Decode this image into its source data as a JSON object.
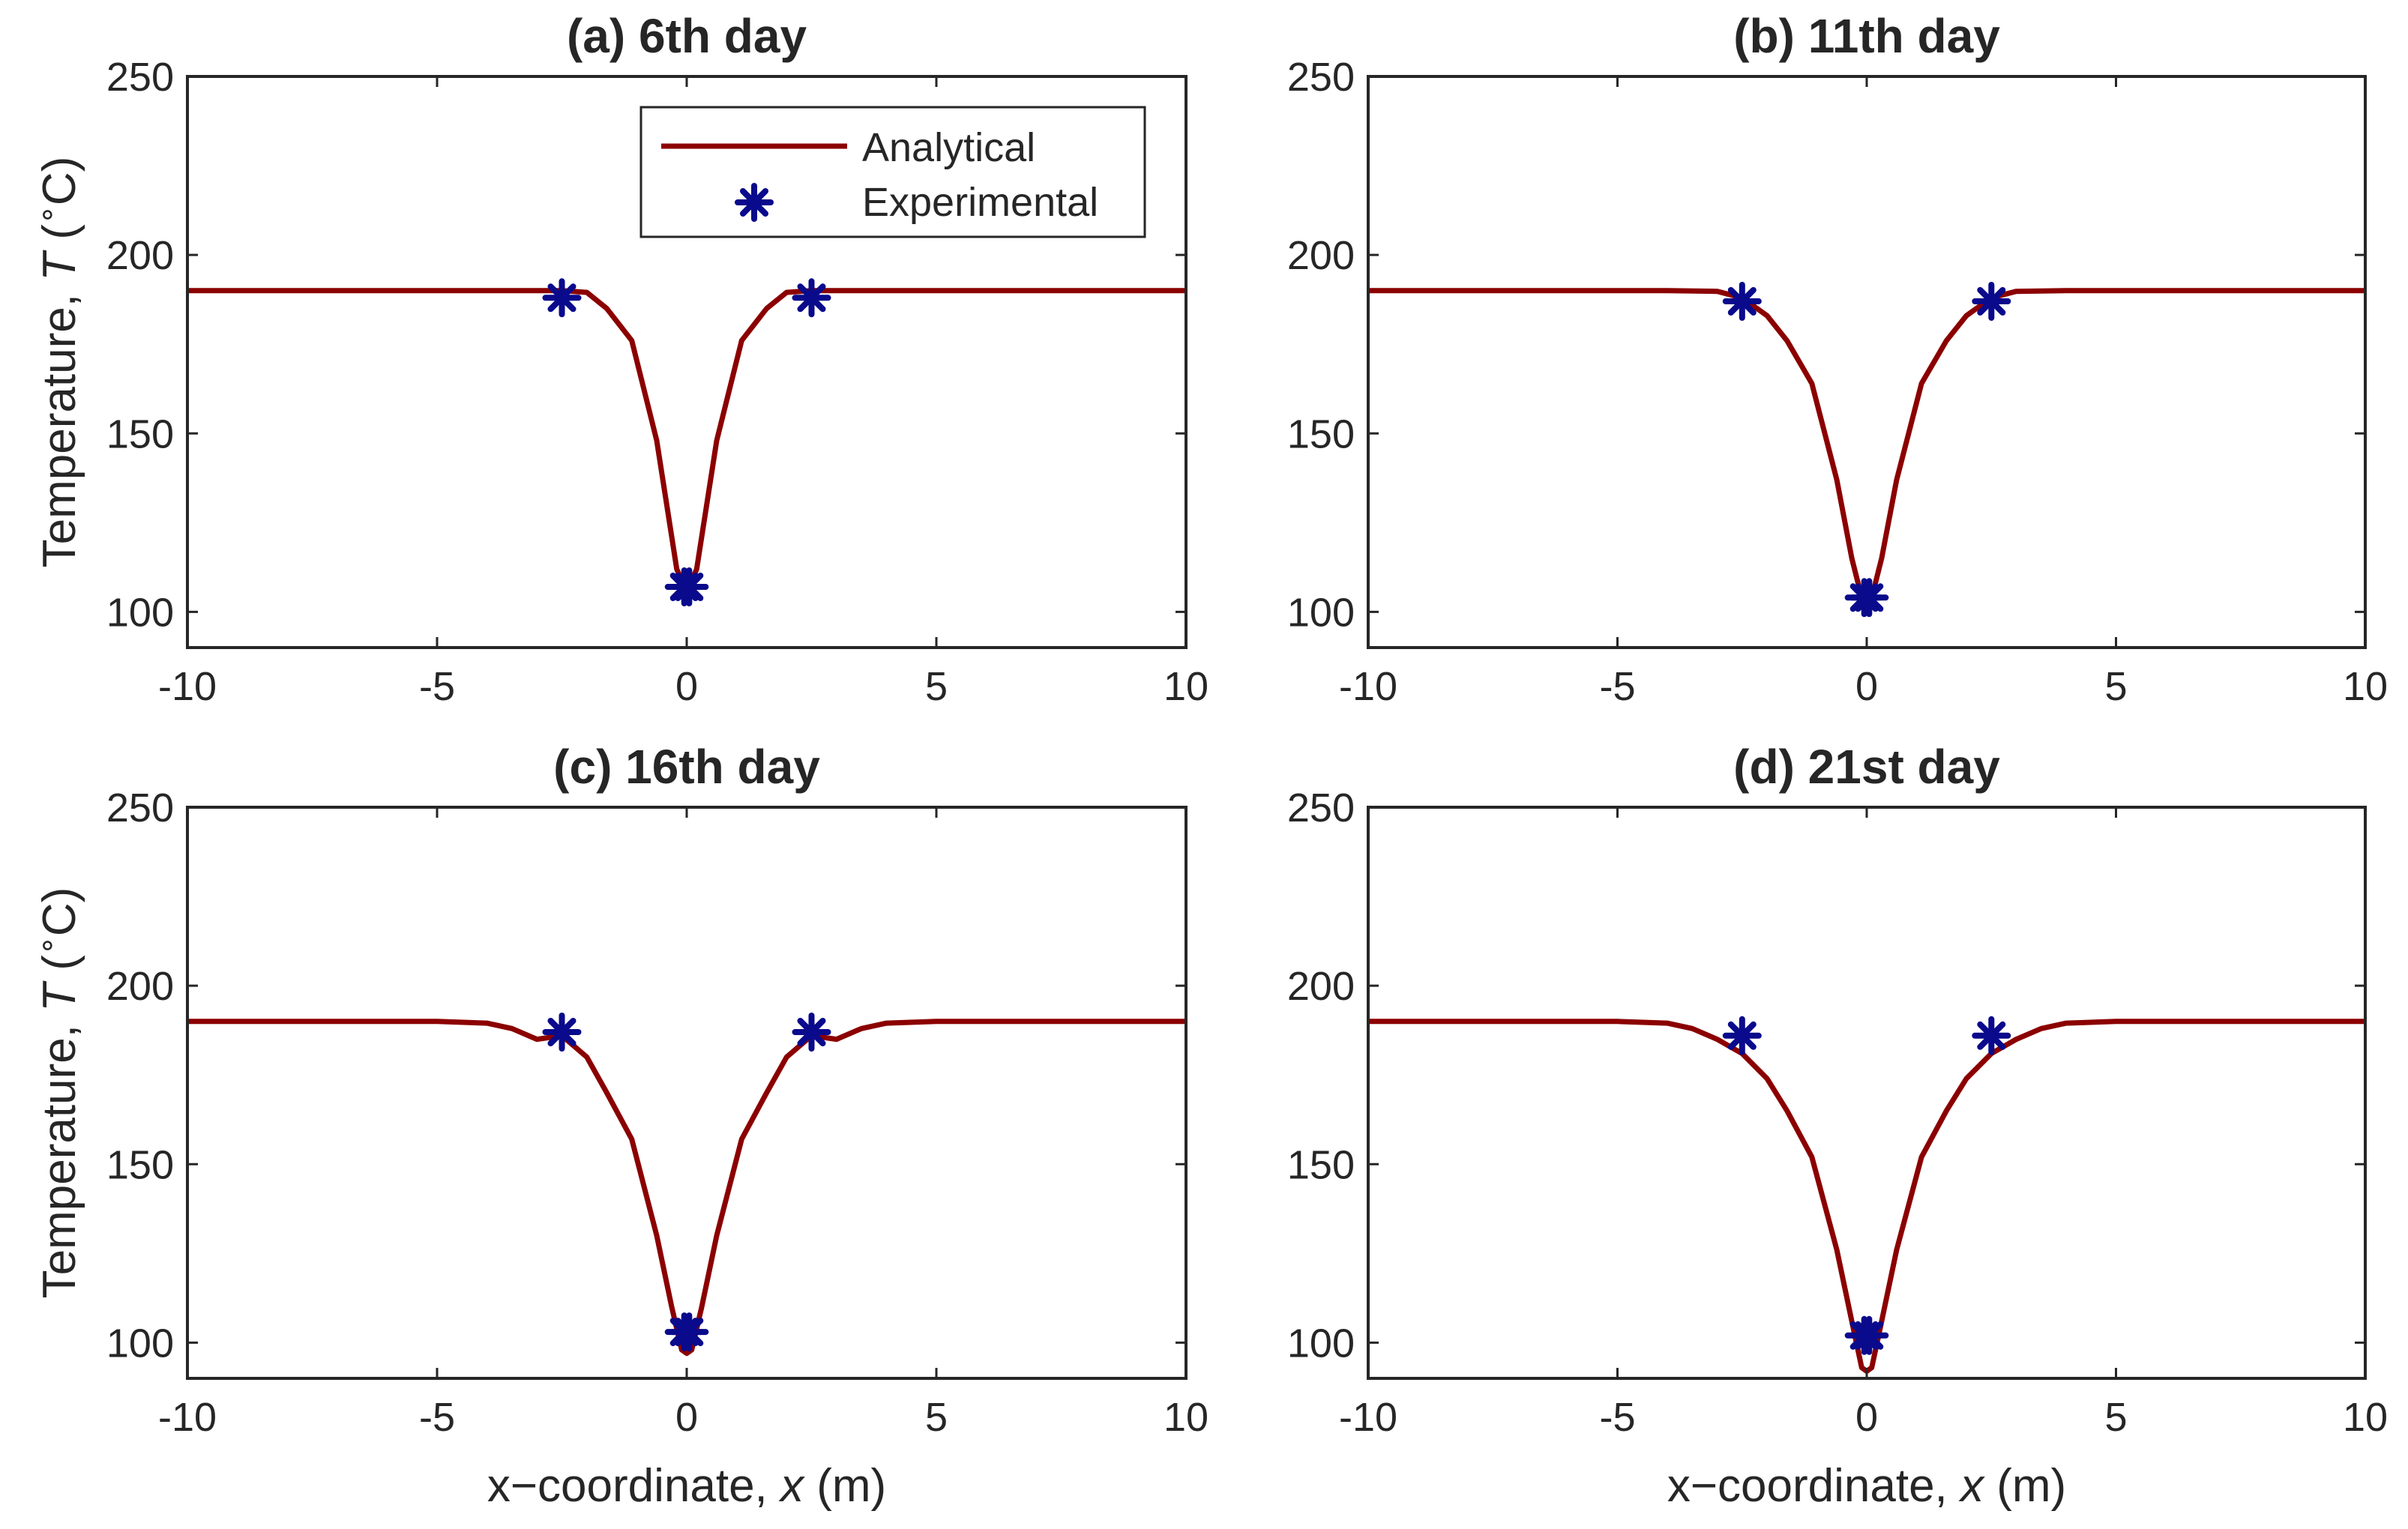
{
  "legend": {
    "analytical_label": "Analytical",
    "experimental_label": "Experimental"
  },
  "axis_text": {
    "ylabel_prefix": "Temperature, ",
    "ylabel_var": "T",
    "ylabel_unit_open": " (",
    "ylabel_degree": "∘",
    "ylabel_unit_close": "C)",
    "xlabel_prefix": "x−coordinate, ",
    "xlabel_var": "x",
    "xlabel_unit": " (m)"
  },
  "colors": {
    "analytical": "#8B0000",
    "experimental": "#0A0A8C",
    "axis": "#262626"
  },
  "chart_data": [
    {
      "type": "line",
      "title": "(a) 6th day",
      "xlim": [
        -10,
        10
      ],
      "ylim": [
        90,
        250
      ],
      "xticks": [
        -10,
        -5,
        0,
        5,
        10
      ],
      "yticks": [
        100,
        150,
        200,
        250
      ],
      "series": [
        {
          "name": "Analytical",
          "x": [
            -10,
            -5,
            -4,
            -3,
            -2.5,
            -2,
            -1.6,
            -1.1,
            -0.6,
            -0.2,
            -0.05,
            0,
            0.05,
            0.2,
            0.6,
            1.1,
            1.6,
            2,
            2.5,
            3,
            4,
            5,
            10
          ],
          "y": [
            190,
            190,
            190,
            190,
            190,
            189.5,
            185,
            176,
            148,
            112,
            107,
            106,
            107,
            112,
            148,
            176,
            185,
            189.5,
            190,
            190,
            190,
            190,
            190
          ]
        },
        {
          "name": "Experimental",
          "x": [
            -2.5,
            -0.05,
            0.05,
            2.5
          ],
          "y": [
            188,
            107,
            107,
            188
          ]
        }
      ]
    },
    {
      "type": "line",
      "title": "(b) 11th day",
      "xlim": [
        -10,
        10
      ],
      "ylim": [
        90,
        250
      ],
      "xticks": [
        -10,
        -5,
        0,
        5,
        10
      ],
      "yticks": [
        100,
        150,
        200,
        250
      ],
      "series": [
        {
          "name": "Analytical",
          "x": [
            -10,
            -5,
            -4,
            -3,
            -2.5,
            -2,
            -1.6,
            -1.1,
            -0.6,
            -0.3,
            -0.1,
            0,
            0.1,
            0.3,
            0.6,
            1.1,
            1.6,
            2,
            2.5,
            3,
            4,
            5,
            10
          ],
          "y": [
            190,
            190,
            190,
            189.8,
            188,
            183,
            176,
            164,
            137,
            115,
            104,
            103,
            104,
            115,
            137,
            164,
            176,
            183,
            188,
            189.8,
            190,
            190,
            190
          ]
        },
        {
          "name": "Experimental",
          "x": [
            -2.5,
            -0.05,
            0.05,
            2.5
          ],
          "y": [
            187,
            104,
            104,
            187
          ]
        }
      ]
    },
    {
      "type": "line",
      "title": "(c) 16th day",
      "xlim": [
        -10,
        10
      ],
      "ylim": [
        90,
        250
      ],
      "xticks": [
        -10,
        -5,
        0,
        5,
        10
      ],
      "yticks": [
        100,
        150,
        200,
        250
      ],
      "series": [
        {
          "name": "Analytical",
          "x": [
            -10,
            -5,
            -4,
            -3.5,
            -3,
            -2.5,
            -2,
            -1.6,
            -1.1,
            -0.6,
            -0.3,
            -0.1,
            0,
            0.1,
            0.3,
            0.6,
            1.1,
            1.6,
            2,
            2.5,
            3,
            3.5,
            4,
            5,
            10
          ],
          "y": [
            190,
            190,
            189.5,
            188,
            185,
            186,
            180,
            170,
            157,
            130,
            110,
            98,
            97,
            98,
            110,
            130,
            157,
            170,
            180,
            186,
            185,
            188,
            189.5,
            190,
            190
          ]
        },
        {
          "name": "Experimental",
          "x": [
            -2.5,
            -0.05,
            0.05,
            2.5
          ],
          "y": [
            187,
            103,
            103,
            187
          ]
        }
      ]
    },
    {
      "type": "line",
      "title": "(d) 21st day",
      "xlim": [
        -10,
        10
      ],
      "ylim": [
        90,
        250
      ],
      "xticks": [
        -10,
        -5,
        0,
        5,
        10
      ],
      "yticks": [
        100,
        150,
        200,
        250
      ],
      "series": [
        {
          "name": "Analytical",
          "x": [
            -10,
            -5,
            -4,
            -3.5,
            -3,
            -2.5,
            -2,
            -1.6,
            -1.1,
            -0.6,
            -0.3,
            -0.1,
            0,
            0.1,
            0.3,
            0.6,
            1.1,
            1.6,
            2,
            2.5,
            3,
            3.5,
            4,
            5,
            10
          ],
          "y": [
            190,
            190,
            189.5,
            188,
            185,
            181,
            174,
            165,
            152,
            126,
            106,
            93,
            92,
            93,
            106,
            126,
            152,
            165,
            174,
            181,
            185,
            188,
            189.5,
            190,
            190
          ]
        },
        {
          "name": "Experimental",
          "x": [
            -2.5,
            -0.05,
            0.05,
            2.5
          ],
          "y": [
            186,
            102,
            102,
            186
          ]
        }
      ]
    }
  ]
}
